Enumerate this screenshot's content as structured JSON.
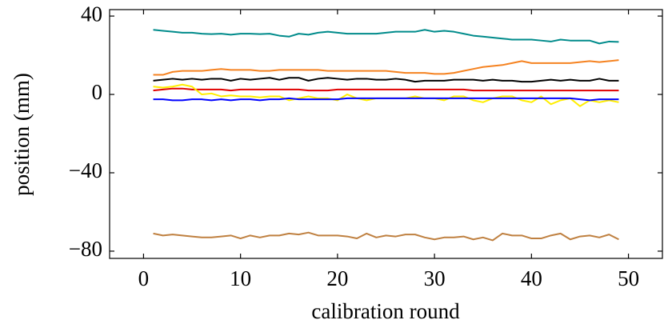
{
  "chart_data": {
    "type": "line",
    "x_label": "calibration round",
    "y_label": "position (mm)",
    "x": [
      1,
      2,
      3,
      4,
      5,
      6,
      7,
      8,
      9,
      10,
      11,
      12,
      13,
      14,
      15,
      16,
      17,
      18,
      19,
      20,
      21,
      22,
      23,
      24,
      25,
      26,
      27,
      28,
      29,
      30,
      31,
      32,
      33,
      34,
      35,
      36,
      37,
      38,
      39,
      40,
      41,
      42,
      43,
      44,
      45,
      46,
      47,
      48,
      49
    ],
    "series": [
      {
        "color": "#008b8b",
        "values": [
          33,
          32.5,
          32,
          31.5,
          31.5,
          31,
          30.8,
          31,
          30.5,
          31,
          31,
          30.8,
          31,
          30,
          29.5,
          31,
          30.5,
          31.5,
          32,
          31.5,
          31,
          31,
          31,
          31,
          31.5,
          32,
          32,
          32,
          33,
          32,
          32.5,
          32,
          31,
          30,
          29.5,
          29,
          28.5,
          28,
          28,
          28,
          27.5,
          27,
          28,
          27.5,
          27.5,
          27.5,
          26,
          27,
          26.8
        ]
      },
      {
        "color": "#f58220",
        "values": [
          10,
          10,
          11.5,
          12,
          12,
          12,
          12.5,
          13,
          12.5,
          12.5,
          12.5,
          12,
          12,
          12.5,
          12.5,
          12.5,
          12.5,
          12.5,
          12,
          12,
          12,
          12,
          12,
          12,
          12,
          11.5,
          11,
          11,
          11,
          10.5,
          10.5,
          11,
          12,
          13,
          14,
          14.5,
          15,
          16,
          17,
          16,
          16,
          16,
          16,
          16,
          16.5,
          17,
          16.5,
          17,
          17.5
        ]
      },
      {
        "color": "#000000",
        "values": [
          7,
          7.5,
          8,
          7.5,
          8,
          7.5,
          8,
          8,
          7,
          8,
          7.5,
          8,
          8.5,
          7.5,
          8.5,
          8.5,
          7,
          8,
          8.5,
          8,
          7.5,
          8,
          8,
          7.5,
          7.5,
          8,
          7.5,
          6.5,
          7,
          7,
          7,
          7.5,
          7.5,
          7.5,
          7,
          7.5,
          7,
          7,
          6.5,
          6.5,
          7,
          7.5,
          7,
          7.5,
          7,
          7,
          8,
          7,
          7
        ]
      },
      {
        "color": "#e00000",
        "values": [
          2,
          2.5,
          3,
          3,
          2.5,
          2.5,
          2.5,
          2.5,
          2,
          2.5,
          2.5,
          2.5,
          2.5,
          2.5,
          2.5,
          2.5,
          2,
          2,
          2,
          2.5,
          2.5,
          2.5,
          2.5,
          2.5,
          2.5,
          2.5,
          2.5,
          2.5,
          2.5,
          2.5,
          2.5,
          2.5,
          2.5,
          2,
          2,
          2,
          2,
          2,
          2,
          2,
          2,
          2,
          2,
          2,
          2,
          2,
          2,
          2,
          2
        ]
      },
      {
        "color": "#ffee00",
        "values": [
          4,
          3.5,
          4,
          5,
          4,
          0,
          0.5,
          -1,
          -0.5,
          -1,
          -1,
          -1.5,
          -1,
          -1,
          -3,
          -2,
          -1,
          -2,
          -2,
          -3,
          0,
          -2,
          -3,
          -2,
          -2,
          -2,
          -2,
          -1,
          -2,
          -2,
          -3,
          -1,
          -1,
          -3,
          -4,
          -2,
          -1,
          -1,
          -3,
          -4,
          -1,
          -5,
          -3,
          -2,
          -6,
          -3,
          -4,
          -3,
          -4
        ]
      },
      {
        "color": "#0000ff",
        "values": [
          -2.5,
          -2.5,
          -3,
          -3,
          -2.5,
          -2.5,
          -3,
          -2.5,
          -3,
          -2.5,
          -2.5,
          -3,
          -2.5,
          -2.5,
          -2,
          -2.5,
          -2.5,
          -2.5,
          -2.5,
          -2.5,
          -2,
          -2,
          -2,
          -2,
          -2,
          -2,
          -2,
          -2,
          -2,
          -2,
          -2,
          -2,
          -2,
          -2,
          -2,
          -2,
          -2,
          -2,
          -2,
          -2,
          -2,
          -2,
          -2,
          -2,
          -2.5,
          -3,
          -2.5,
          -2.5,
          -2.5
        ]
      },
      {
        "color": "#bf8040",
        "values": [
          -71,
          -72,
          -71.5,
          -72,
          -72.5,
          -73,
          -73,
          -72.5,
          -72,
          -73.5,
          -72,
          -73,
          -72,
          -72,
          -71,
          -71.5,
          -70.5,
          -72,
          -72,
          -72,
          -72.5,
          -73.5,
          -71,
          -73,
          -72,
          -72.5,
          -71.5,
          -71.5,
          -73,
          -74,
          -73,
          -73,
          -72.5,
          -74,
          -73,
          -74.5,
          -71,
          -72,
          -72,
          -73.5,
          -73.5,
          -72,
          -71,
          -74,
          -72.5,
          -72,
          -73,
          -71.5,
          -74
        ]
      }
    ],
    "xlim": [
      -3.5,
      53.5
    ],
    "xticks": [
      0,
      10,
      20,
      30,
      40,
      50
    ],
    "ylim": [
      -83.7,
      43.3
    ],
    "yticks": [
      {
        "value": -80,
        "label": "−80"
      },
      {
        "value": -40,
        "label": "−40"
      },
      0,
      40
    ],
    "grid": false
  }
}
